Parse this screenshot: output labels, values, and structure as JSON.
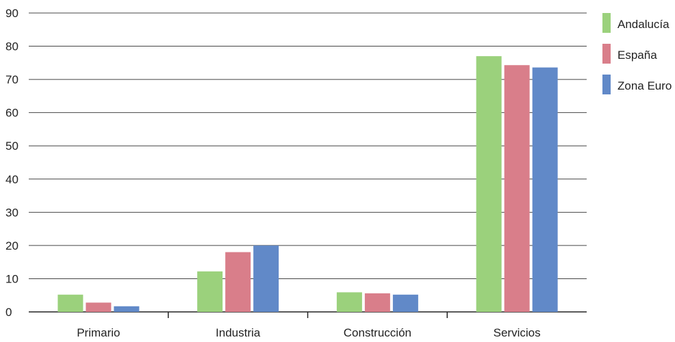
{
  "chart_data": {
    "type": "bar",
    "categories": [
      "Primario",
      "Industria",
      "Construcción",
      "Servicios"
    ],
    "series": [
      {
        "name": "Andalucía",
        "color": "#9bd17c",
        "values": [
          5.2,
          12.2,
          5.9,
          77.0
        ]
      },
      {
        "name": "España",
        "color": "#d97e8a",
        "values": [
          2.8,
          18.0,
          5.6,
          74.3
        ]
      },
      {
        "name": "Zona Euro",
        "color": "#6189c8",
        "values": [
          1.7,
          20.0,
          5.2,
          73.6
        ]
      }
    ],
    "ylim": [
      0,
      90
    ],
    "yticks": [
      "0",
      "10",
      "20",
      "30",
      "40",
      "50",
      "60",
      "70",
      "80",
      "90"
    ],
    "grid": true,
    "legend_position": "right"
  }
}
